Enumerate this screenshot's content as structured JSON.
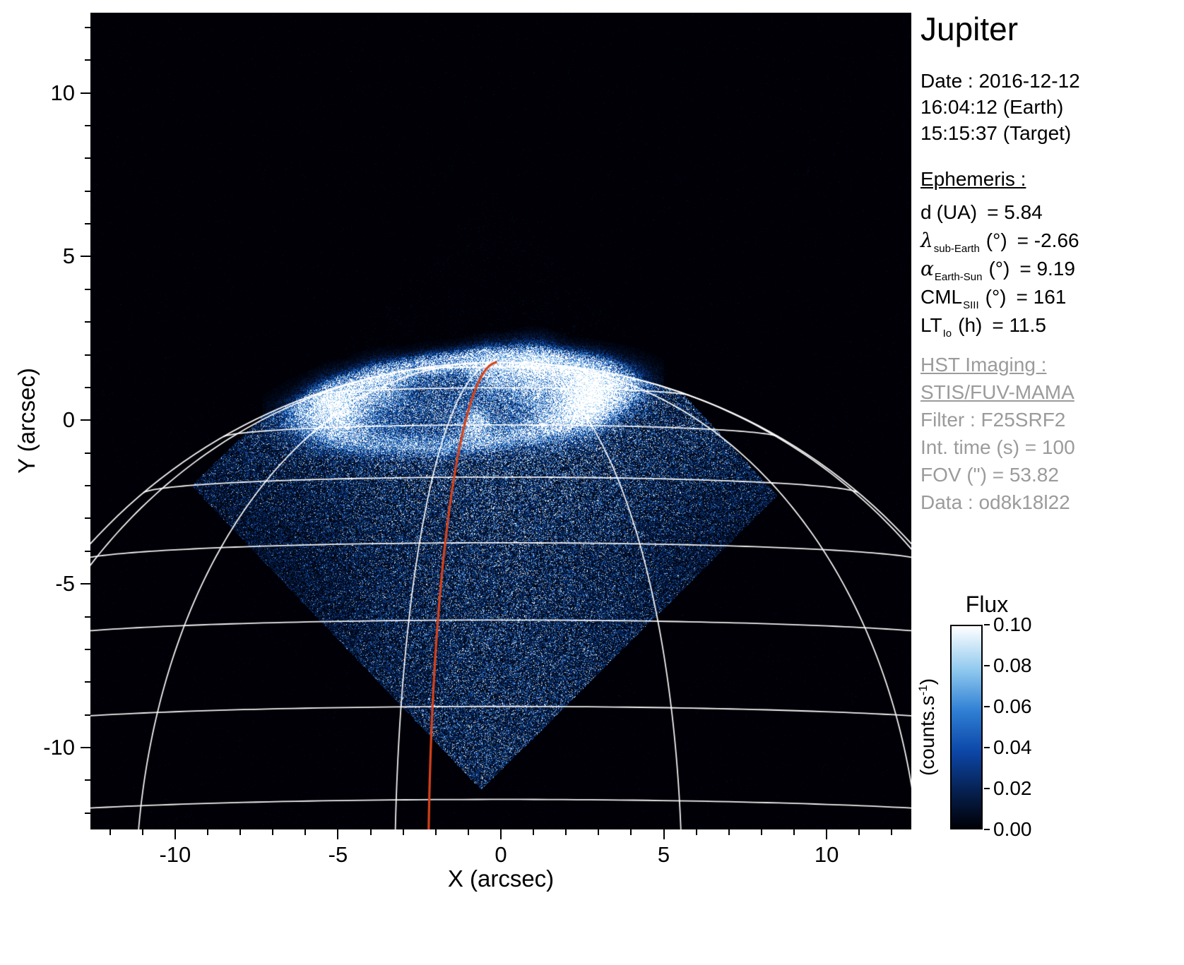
{
  "title": "Jupiter",
  "observation": {
    "date": "Date : 2016-12-12",
    "time_earth": "16:04:12 (Earth)",
    "time_target": "15:15:37 (Target)"
  },
  "ephemeris": {
    "heading": "Ephemeris :",
    "rows": [
      {
        "sym": "d",
        "sub": "",
        "unit": "(UA)",
        "value": "= 5.84",
        "greek": false
      },
      {
        "sym": "λ",
        "sub": "sub-Earth",
        "unit": "(°)",
        "value": "= -2.66",
        "greek": true
      },
      {
        "sym": "α",
        "sub": "Earth-Sun",
        "unit": "(°)",
        "value": "= 9.19",
        "greek": true
      },
      {
        "sym": "CML",
        "sub": "SIII",
        "unit": "(°)",
        "value": "= 161",
        "greek": false
      },
      {
        "sym": "LT",
        "sub": "Io",
        "unit": "(h)",
        "value": "= 11.5",
        "greek": false
      }
    ]
  },
  "hst_imaging": {
    "heading": "HST Imaging :",
    "lines": [
      {
        "text": "STIS/FUV-MAMA",
        "underline": true
      },
      {
        "text": "Filter : F25SRF2",
        "underline": false
      },
      {
        "text": "Int. time (s) = 100",
        "underline": false
      },
      {
        "text": "FOV (\") = 53.82",
        "underline": false
      },
      {
        "text": "Data : od8k18l22",
        "underline": false
      }
    ]
  },
  "colorbar": {
    "title": "Flux",
    "unit_pre": "(counts.s",
    "unit_sup": "-1",
    "unit_post": ")",
    "tick_labels": [
      "0.10",
      "0.08",
      "0.06",
      "0.04",
      "0.02",
      "0.00"
    ],
    "flux_min": 0.0,
    "flux_max": 0.1
  },
  "chart_data": {
    "type": "heatmap",
    "title": "Jupiter",
    "xlabel": "X (arcsec)",
    "ylabel": "Y (arcsec)",
    "xlim": [
      -12.6,
      12.6
    ],
    "ylim": [
      -12.5,
      12.45
    ],
    "x_major_ticks": [
      -10,
      -5,
      0,
      5,
      10
    ],
    "x_tick_labels": [
      "-10",
      "-5",
      "0",
      "5",
      "10"
    ],
    "y_major_ticks": [
      -10,
      -5,
      0,
      5,
      10
    ],
    "y_tick_labels": [
      "-10",
      "-5",
      "0",
      "5",
      "10"
    ],
    "minor_tick_step": 1,
    "flux_range": [
      0.0,
      0.1
    ],
    "background_color": "#000000",
    "colormap_stops": [
      {
        "t": 0.0,
        "c": "#000006"
      },
      {
        "t": 0.18,
        "c": "#06204f"
      },
      {
        "t": 0.38,
        "c": "#0c47a8"
      },
      {
        "t": 0.58,
        "c": "#2f7fd4"
      },
      {
        "t": 0.78,
        "c": "#8ec8ee"
      },
      {
        "t": 1.0,
        "c": "#ffffff"
      }
    ],
    "planet_disk": {
      "cx": 0,
      "cy": -15.33,
      "radius_arcsec": 17.1,
      "sub_earth_lat_deg": -2.66
    },
    "grid": {
      "color": "#ffffff",
      "lat_min_deg": 10,
      "lat_max_deg": 80,
      "lat_step_deg": 10,
      "meridian_offsets_deg": [
        -71,
        -41,
        -11,
        19,
        49,
        79
      ]
    },
    "red_meridian": {
      "dlon_deg": -7.5,
      "color": "#d8421a"
    },
    "fov_diamond_arcsec": [
      [
        -0.2,
        7.0
      ],
      [
        8.5,
        -2.3
      ],
      [
        -0.6,
        -11.3
      ],
      [
        -9.5,
        -2.0
      ]
    ],
    "disk_noise": {
      "base": 0.1,
      "x_gauss": {
        "center": 0.2,
        "sigma": 4.0,
        "amp": 0.3
      },
      "y_gauss": {
        "center": 0.3,
        "sigma": 2.2,
        "amp": 0.18
      }
    },
    "aurora": {
      "oval": {
        "cx": -1.15,
        "cy": 0.55,
        "a": 4.35,
        "b": 1.28,
        "tilt_deg": 5.5,
        "width_sigma": 0.15,
        "base_amp": 0.55
      },
      "ring_lumps": [
        {
          "theta_deg": 10,
          "amp": 0.85,
          "sigma_deg": 28
        },
        {
          "theta_deg": 80,
          "amp": 0.5,
          "sigma_deg": 30
        },
        {
          "theta_deg": 168,
          "amp": 0.5,
          "sigma_deg": 22
        },
        {
          "theta_deg": -115,
          "amp": -0.25,
          "sigma_deg": 40
        }
      ],
      "patches": [
        {
          "x": 2.55,
          "y": 0.7,
          "sigma": 0.55,
          "amp": 1.25
        },
        {
          "x": 1.0,
          "y": 1.5,
          "sigma": 0.5,
          "amp": 0.95
        },
        {
          "x": -0.2,
          "y": 1.55,
          "sigma": 0.45,
          "amp": 0.6
        },
        {
          "x": -4.9,
          "y": 0.35,
          "sigma": 0.5,
          "amp": 0.95
        },
        {
          "x": -3.7,
          "y": 1.0,
          "sigma": 0.45,
          "amp": 0.5
        },
        {
          "x": -0.75,
          "y": -0.15,
          "sigma": 0.3,
          "amp": 0.8
        },
        {
          "x": 1.6,
          "y": 0.3,
          "sigma": 0.65,
          "amp": 0.3
        }
      ],
      "interior_amp": 0.16
    }
  }
}
